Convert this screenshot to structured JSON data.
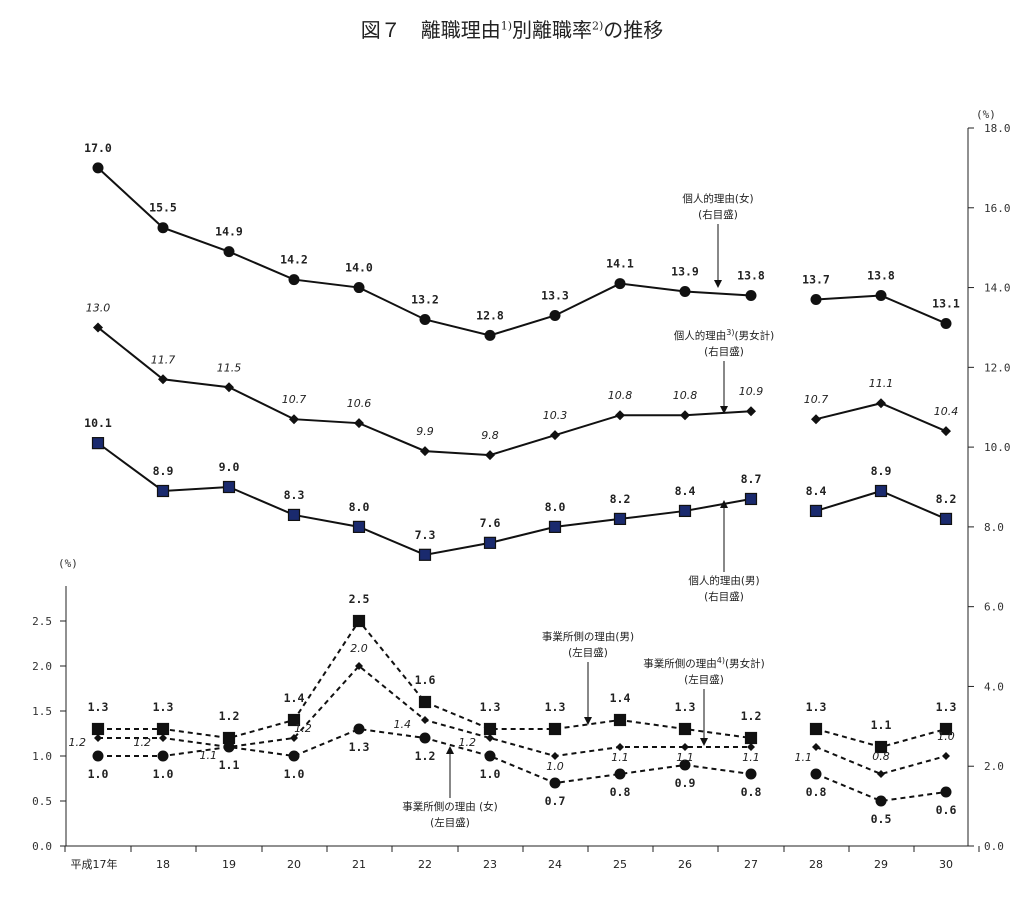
{
  "title": {
    "main": "図７　離職理由",
    "sup1": "1)",
    "mid": "別離職率",
    "sup2": "2)",
    "end": "の推移"
  },
  "chart_data": {
    "type": "line",
    "categories": [
      "平成17年",
      "18",
      "19",
      "20",
      "21",
      "22",
      "23",
      "24",
      "25",
      "26",
      "27",
      "28",
      "29",
      "30"
    ],
    "right_axis": {
      "unit": "(%)",
      "ticks": [
        "0.0",
        "2.0",
        "4.0",
        "6.0",
        "8.0",
        "10.0",
        "12.0",
        "14.0",
        "16.0",
        "18.0"
      ],
      "ylim": [
        0,
        18
      ]
    },
    "left_axis": {
      "unit": "(%)",
      "ticks": [
        "0.0",
        "0.5",
        "1.0",
        "1.5",
        "2.0",
        "2.5"
      ],
      "ylim": [
        0,
        2.9
      ]
    },
    "series": [
      {
        "id": "pf",
        "name": "個人的理由(女)",
        "axis_note": "(右目盛)",
        "axis": "right",
        "marker": "circle",
        "line": "solid",
        "values": [
          17.0,
          15.5,
          14.9,
          14.2,
          14.0,
          13.2,
          12.8,
          13.3,
          14.1,
          13.9,
          13.8,
          13.7,
          13.8,
          13.1
        ],
        "labels": [
          "17.0",
          "15.5",
          "14.9",
          "14.2",
          "14.0",
          "13.2",
          "12.8",
          "13.3",
          "14.1",
          "13.9",
          "13.8",
          "13.7",
          "13.8",
          "13.1"
        ]
      },
      {
        "id": "pt",
        "name": "個人的理由",
        "name_sup": "3)",
        "name_tail": "(男女計)",
        "axis_note": "(右目盛)",
        "axis": "right",
        "marker": "diamond",
        "line": "solid",
        "italic": true,
        "values": [
          13.0,
          11.7,
          11.5,
          10.7,
          10.6,
          9.9,
          9.8,
          10.3,
          10.8,
          10.8,
          10.9,
          10.7,
          11.1,
          10.4
        ],
        "labels": [
          "13.0",
          "11.7",
          "11.5",
          "10.7",
          "10.6",
          "9.9",
          "9.8",
          "10.3",
          "10.8",
          "10.8",
          "10.9",
          "10.7",
          "11.1",
          "10.4"
        ]
      },
      {
        "id": "pm",
        "name": "個人的理由(男)",
        "axis_note": "(右目盛)",
        "axis": "right",
        "marker": "square",
        "line": "solid",
        "values": [
          10.1,
          8.9,
          9.0,
          8.3,
          8.0,
          7.3,
          7.6,
          8.0,
          8.2,
          8.4,
          8.7,
          8.4,
          8.9,
          8.2
        ],
        "labels": [
          "10.1",
          "8.9",
          "9.0",
          "8.3",
          "8.0",
          "7.3",
          "7.6",
          "8.0",
          "8.2",
          "8.4",
          "8.7",
          "8.4",
          "8.9",
          "8.2"
        ]
      },
      {
        "id": "bm",
        "name": "事業所側の理由(男)",
        "axis_note": "(左目盛)",
        "axis": "left",
        "marker": "square",
        "line": "dashed",
        "values": [
          1.3,
          1.3,
          1.2,
          1.4,
          2.5,
          1.6,
          1.3,
          1.3,
          1.4,
          1.3,
          1.2,
          1.3,
          1.1,
          1.3
        ],
        "labels": [
          "1.3",
          "1.3",
          "1.2",
          "1.4",
          "2.5",
          "1.6",
          "1.3",
          "1.3",
          "1.4",
          "1.3",
          "1.2",
          "1.3",
          "1.1",
          "1.3"
        ]
      },
      {
        "id": "bt",
        "name": "事業所側の理由",
        "name_sup": "4)",
        "name_tail": "(男女計)",
        "axis_note": "(左目盛)",
        "axis": "left",
        "marker": "diamond",
        "line": "dashed",
        "italic": true,
        "values": [
          1.2,
          1.2,
          1.1,
          1.2,
          2.0,
          1.4,
          1.2,
          1.0,
          1.1,
          1.1,
          1.1,
          1.1,
          0.8,
          1.0
        ],
        "labels": [
          "1.2",
          "1.2",
          "1.1",
          "1.2",
          "2.0",
          "1.4",
          "1.2",
          "1.0",
          "1.1",
          "1.1",
          "1.1",
          "1.1",
          "0.8",
          "1.0"
        ]
      },
      {
        "id": "bf",
        "name": "事業所側の理由 (女)",
        "axis_note": "(左目盛)",
        "axis": "left",
        "marker": "circle",
        "line": "dashed",
        "values": [
          1.0,
          1.0,
          1.1,
          1.0,
          1.3,
          1.2,
          1.0,
          0.7,
          0.8,
          0.9,
          0.8,
          0.8,
          0.5,
          0.6
        ],
        "labels": [
          "1.0",
          "1.0",
          "1.1",
          "1.0",
          "1.3",
          "1.2",
          "1.0",
          "0.7",
          "0.8",
          "0.9",
          "0.8",
          "0.8",
          "0.5",
          "0.6"
        ]
      }
    ],
    "break_between": [
      "27",
      "28"
    ],
    "grid": false
  }
}
